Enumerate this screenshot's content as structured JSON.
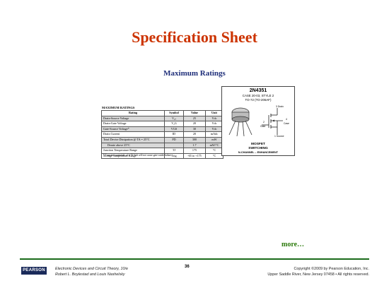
{
  "slide": {
    "title": "Specification Sheet",
    "subtitle": "Maximum Ratings",
    "more_link": "more…",
    "page_number": "36"
  },
  "ratings": {
    "title": "MAXIMUM RATINGS",
    "headers": [
      "Rating",
      "Symbol",
      "Value",
      "Unit"
    ],
    "rows": [
      {
        "rating": "Drain-Source Voltage",
        "symbol": "V₂ₛ",
        "value": "25",
        "unit": "Vdc"
      },
      {
        "rating": "Drain-Gate Voltage",
        "symbol": "V₂G",
        "value": "20",
        "unit": "Vdc"
      },
      {
        "rating": "Gate-Source Voltage*",
        "symbol": "VGS",
        "value": "30",
        "unit": "Vdc"
      },
      {
        "rating": "Drain Current",
        "symbol": "ID",
        "value": "20",
        "unit": "mAdc"
      },
      {
        "rating": "Total Device Dissipation @ TA = 25°C",
        "symbol": "PD",
        "value": "300",
        "unit": "mW"
      },
      {
        "rating": "Derate above 25°C",
        "symbol": "",
        "value": "1.7",
        "unit": "mW/°C"
      },
      {
        "rating": "Junction Temperature Range",
        "symbol": "TJ",
        "value": "175",
        "unit": "°C"
      },
      {
        "rating": "Storage Temperature Range",
        "symbol": "Tstg",
        "value": "-65 to +175",
        "unit": "°C"
      }
    ],
    "footnote": "* Transient potentials of ± 75 Volt will not cause gate-oxide failure."
  },
  "package": {
    "part_number": "2N4351",
    "case_line1": "CASE 20-03, STYLE 2",
    "case_line2": "TO-72 (TO-206AF)",
    "drain_label": "3 Drain",
    "gate_label": "Gate",
    "case_label": "Case",
    "source_label": "1 Source",
    "pin_gate": "2",
    "pin_case": "4",
    "device_type": "MOSFET",
    "application": "SWITCHING",
    "channel": "N-CHANNEL – ENHANCEMENT"
  },
  "footer": {
    "publisher_logo": "PEARSON",
    "book_title": "Electronic Devices and Circuit Theory, 10/e",
    "authors": "Robert L. Boylestad and Louis Nashelsky",
    "copyright": "Copyright ©2009 by Pearson Education, Inc.",
    "address": "Upper Saddle River, New Jersey 07458 • All rights reserved."
  },
  "colors": {
    "title": "#cc3300",
    "subtitle": "#1f2f7a",
    "more_link": "#2b7a0b",
    "footer_rule": "#1b6b1b"
  }
}
